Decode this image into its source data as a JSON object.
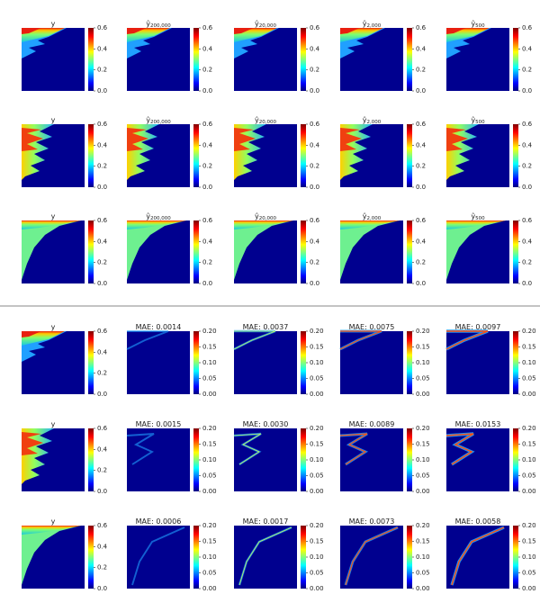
{
  "rows": [
    {
      "panels": [
        {
          "title": "y",
          "clim": [
            0,
            0.6
          ],
          "ticks": [
            {
              "value": 0,
              "label": "0.0"
            },
            0.2,
            0.4,
            0.6
          ]
        },
        {
          "title": "ŷ",
          "title_sub": "200,000",
          "clim": [
            0,
            0.6
          ],
          "ticks": [
            {
              "value": 0,
              "label": "0.0"
            },
            0.2,
            0.4,
            0.6
          ]
        },
        {
          "title": "ŷ",
          "title_sub": "20,000",
          "clim": [
            0,
            0.6
          ],
          "ticks": [
            {
              "value": 0,
              "label": "0.0"
            },
            0.2,
            0.4,
            0.6
          ]
        },
        {
          "title": "ŷ",
          "title_sub": "2,000",
          "clim": [
            0,
            0.6
          ],
          "ticks": [
            {
              "value": 0,
              "label": "0.0"
            },
            0.2,
            0.4,
            0.6
          ]
        },
        {
          "title": "ŷ",
          "title_sub": "500",
          "clim": [
            0,
            0.6
          ],
          "ticks": [
            {
              "value": 0,
              "label": "0.0"
            },
            0.2,
            0.4,
            0.6
          ]
        }
      ]
    },
    {
      "panels": [
        {
          "title": "y",
          "clim": [
            0,
            0.6
          ],
          "ticks": [
            {
              "value": 0,
              "label": "0.0"
            },
            0.2,
            0.4,
            0.6
          ]
        },
        {
          "title": "ŷ",
          "title_sub": "200,000",
          "clim": [
            0,
            0.6
          ],
          "ticks": [
            {
              "value": 0,
              "label": "0.0"
            },
            0.2,
            0.4,
            0.6
          ]
        },
        {
          "title": "ŷ",
          "title_sub": "20,000",
          "clim": [
            0,
            0.6
          ],
          "ticks": [
            {
              "value": 0,
              "label": "0.0"
            },
            0.2,
            0.4,
            0.6
          ]
        },
        {
          "title": "ŷ",
          "title_sub": "2,000",
          "clim": [
            0,
            0.6
          ],
          "ticks": [
            {
              "value": 0,
              "label": "0.0"
            },
            0.2,
            0.4,
            0.6
          ]
        },
        {
          "title": "ŷ",
          "title_sub": "500",
          "clim": [
            0,
            0.6
          ],
          "ticks": [
            {
              "value": 0,
              "label": "0.0"
            },
            0.2,
            0.4,
            0.6
          ]
        }
      ]
    },
    {
      "panels": [
        {
          "title": "y",
          "clim": [
            0,
            0.6
          ],
          "ticks": [
            {
              "value": 0,
              "label": "0.0"
            },
            0.2,
            0.4,
            0.6
          ]
        },
        {
          "title": "ŷ",
          "title_sub": "200,000",
          "clim": [
            0,
            0.6
          ],
          "ticks": [
            {
              "value": 0,
              "label": "0.0"
            },
            0.2,
            0.4,
            0.6
          ]
        },
        {
          "title": "ŷ",
          "title_sub": "20,000",
          "clim": [
            0,
            0.6
          ],
          "ticks": [
            {
              "value": 0,
              "label": "0.0"
            },
            0.2,
            0.4,
            0.6
          ]
        },
        {
          "title": "ŷ",
          "title_sub": "2,000",
          "clim": [
            0,
            0.6
          ],
          "ticks": [
            {
              "value": 0,
              "label": "0.0"
            },
            0.2,
            0.4,
            0.6
          ]
        },
        {
          "title": "ŷ",
          "title_sub": "500",
          "clim": [
            0,
            0.6
          ],
          "ticks": [
            {
              "value": 0,
              "label": "0.0"
            },
            0.2,
            0.4,
            0.6
          ]
        }
      ]
    },
    {
      "panels": [
        {
          "title": "y",
          "clim": [
            0,
            0.6
          ],
          "ticks": [
            {
              "value": 0,
              "label": "0.0"
            },
            0.2,
            0.4,
            0.6
          ]
        },
        {
          "title": "MAE: 0.0014",
          "clim": [
            0,
            0.2
          ],
          "ticks": [
            {
              "value": 0,
              "label": "0.00"
            },
            0.05,
            {
              "value": 0.1,
              "label": "0.10"
            },
            0.15,
            {
              "value": 0.2,
              "label": "0.20"
            }
          ]
        },
        {
          "title": "MAE: 0.0037",
          "clim": [
            0,
            0.2
          ],
          "ticks": [
            {
              "value": 0,
              "label": "0.00"
            },
            0.05,
            {
              "value": 0.1,
              "label": "0.10"
            },
            0.15,
            {
              "value": 0.2,
              "label": "0.20"
            }
          ]
        },
        {
          "title": "MAE: 0.0075",
          "clim": [
            0,
            0.2
          ],
          "ticks": [
            {
              "value": 0,
              "label": "0.00"
            },
            0.05,
            {
              "value": 0.1,
              "label": "0.10"
            },
            0.15,
            {
              "value": 0.2,
              "label": "0.20"
            }
          ]
        },
        {
          "title": "MAE: 0.0097",
          "clim": [
            0,
            0.2
          ],
          "ticks": [
            {
              "value": 0,
              "label": "0.00"
            },
            0.05,
            {
              "value": 0.1,
              "label": "0.10"
            },
            0.15,
            {
              "value": 0.2,
              "label": "0.20"
            }
          ]
        }
      ]
    },
    {
      "panels": [
        {
          "title": "y",
          "clim": [
            0,
            0.6
          ],
          "ticks": [
            {
              "value": 0,
              "label": "0.0"
            },
            0.2,
            0.4,
            0.6
          ]
        },
        {
          "title": "MAE: 0.0015",
          "clim": [
            0,
            0.2
          ],
          "ticks": [
            {
              "value": 0,
              "label": "0.00"
            },
            0.05,
            {
              "value": 0.1,
              "label": "0.10"
            },
            0.15,
            {
              "value": 0.2,
              "label": "0.20"
            }
          ]
        },
        {
          "title": "MAE: 0.0030",
          "clim": [
            0,
            0.2
          ],
          "ticks": [
            {
              "value": 0,
              "label": "0.00"
            },
            0.05,
            {
              "value": 0.1,
              "label": "0.10"
            },
            0.15,
            {
              "value": 0.2,
              "label": "0.20"
            }
          ]
        },
        {
          "title": "MAE: 0.0089",
          "clim": [
            0,
            0.2
          ],
          "ticks": [
            {
              "value": 0,
              "label": "0.00"
            },
            0.05,
            {
              "value": 0.1,
              "label": "0.10"
            },
            0.15,
            {
              "value": 0.2,
              "label": "0.20"
            }
          ]
        },
        {
          "title": "MAE: 0.0153",
          "clim": [
            0,
            0.2
          ],
          "ticks": [
            {
              "value": 0,
              "label": "0.00"
            },
            0.05,
            {
              "value": 0.1,
              "label": "0.10"
            },
            0.15,
            {
              "value": 0.2,
              "label": "0.20"
            }
          ]
        }
      ]
    },
    {
      "panels": [
        {
          "title": "y",
          "clim": [
            0,
            0.6
          ],
          "ticks": [
            {
              "value": 0,
              "label": "0.0"
            },
            0.2,
            0.4,
            0.6
          ]
        },
        {
          "title": "MAE: 0.0006",
          "clim": [
            0,
            0.2
          ],
          "ticks": [
            {
              "value": 0,
              "label": "0.00"
            },
            0.05,
            {
              "value": 0.1,
              "label": "0.10"
            },
            0.15,
            {
              "value": 0.2,
              "label": "0.20"
            }
          ]
        },
        {
          "title": "MAE: 0.0017",
          "clim": [
            0,
            0.2
          ],
          "ticks": [
            {
              "value": 0,
              "label": "0.00"
            },
            0.05,
            {
              "value": 0.1,
              "label": "0.10"
            },
            0.15,
            {
              "value": 0.2,
              "label": "0.20"
            }
          ]
        },
        {
          "title": "MAE: 0.0073",
          "clim": [
            0,
            0.2
          ],
          "ticks": [
            {
              "value": 0,
              "label": "0.00"
            },
            0.05,
            {
              "value": 0.1,
              "label": "0.10"
            },
            0.15,
            {
              "value": 0.2,
              "label": "0.20"
            }
          ]
        },
        {
          "title": "MAE: 0.0058",
          "clim": [
            0,
            0.2
          ],
          "ticks": [
            {
              "value": 0,
              "label": "0.00"
            },
            0.05,
            {
              "value": 0.1,
              "label": "0.10"
            },
            0.15,
            {
              "value": 0.2,
              "label": "0.20"
            }
          ]
        }
      ]
    }
  ]
}
